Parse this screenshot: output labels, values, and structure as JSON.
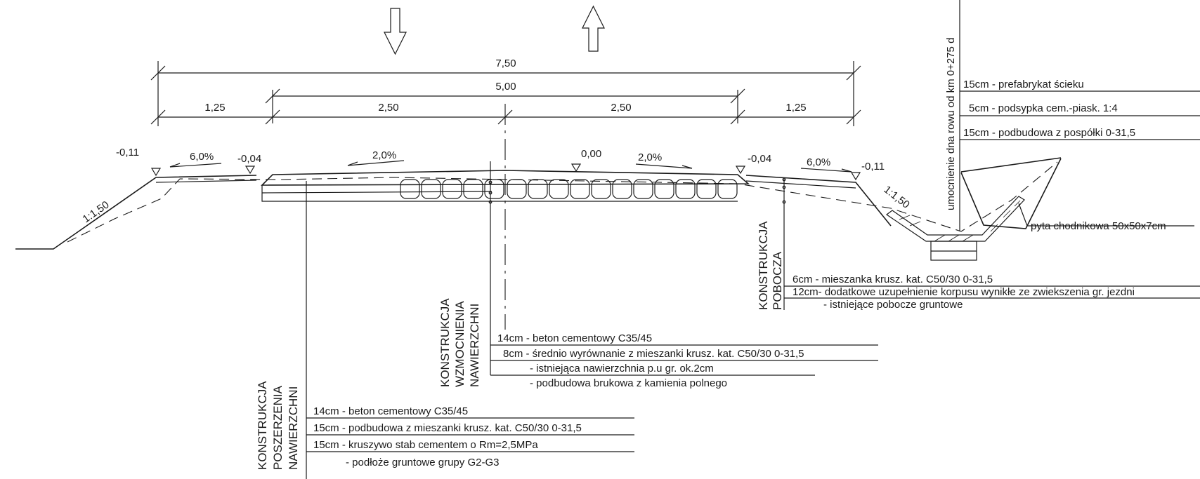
{
  "dimensions": {
    "total": "7,50",
    "lane_total": "5,00",
    "left_shoulder": "1,25",
    "lane_left": "2,50",
    "lane_right": "2,50",
    "right_shoulder": "1,25"
  },
  "elevations": {
    "left_outer": "-0,11",
    "left_inner": "-0,04",
    "axis": "0,00",
    "right_inner": "-0,04",
    "right_outer": "-0,11"
  },
  "slopes": {
    "left_shoulder": "6,0%",
    "left_lane": "2,0%",
    "right_lane": "2,0%",
    "right_shoulder": "6,0%",
    "left_embankment": "1:1,50",
    "right_embankment": "1:1,50"
  },
  "ditch": {
    "vertical_label": "umocnienie dna rowu od km 0+275 d",
    "layers": [
      "15cm  - prefabrykat ścieku",
      "5cm  - podsypka cem.-piask. 1:4",
      "15cm  - podbudowa z pospółki 0-31,5"
    ],
    "slab_label": "pyta chodnikowa 50x50x7cm"
  },
  "shoulder_construction": {
    "title_lines": [
      "KONSTRUKCJA",
      "POBOCZA"
    ],
    "layers": [
      "6cm -  mieszanka krusz. kat. C50/30  0-31,5",
      "12cm- dodatkowe uzupełnienie korpusu wynikłe ze zwiekszenia gr. jezdni",
      "- istniejące pobocze gruntowe"
    ]
  },
  "reinforcement_construction": {
    "title_lines": [
      "KONSTRUKCJA",
      "WZMOCNIENIA",
      "NAWIERZCHNI"
    ],
    "layers": [
      "14cm  - beton cementowy C35/45",
      "8cm - średnio wyrównanie z mieszanki krusz. kat. C50/30  0-31,5",
      "- istniejąca nawierzchnia p.u gr. ok.2cm",
      "- podbudowa brukowa z kamienia polnego"
    ]
  },
  "widening_construction": {
    "title_lines": [
      "KONSTRUKCJA",
      "POSZERZENIA",
      "NAWIERZCHNI"
    ],
    "layers": [
      "14cm  - beton cementowy C35/45",
      "15cm - podbudowa z mieszanki krusz. kat. C50/30  0-31,5",
      "15cm - kruszywo stab cementem o Rm=2,5MPa",
      "- podłoże gruntowe grupy G2-G3"
    ]
  }
}
